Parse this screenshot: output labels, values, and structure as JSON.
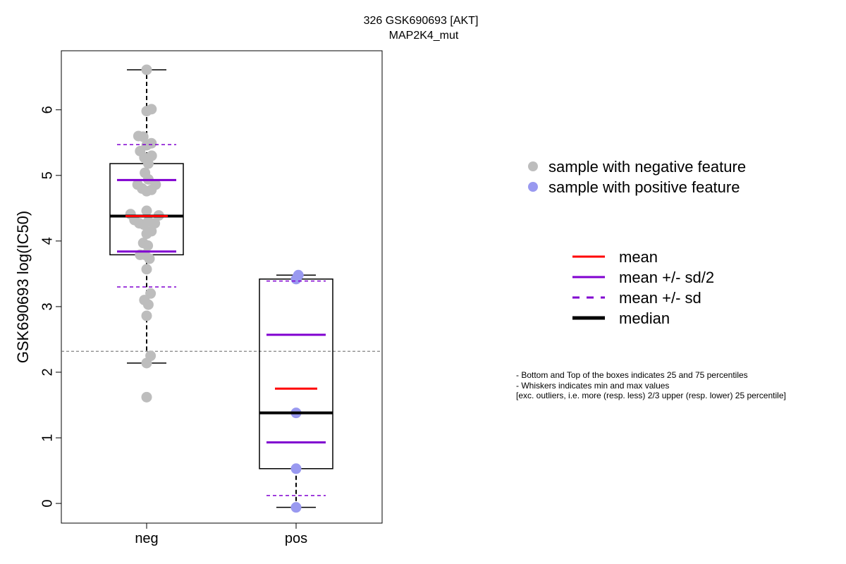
{
  "chart_data": {
    "type": "box",
    "title": "326 GSK690693 [AKT]",
    "subtitle": "MAP2K4_mut",
    "ylabel": "GSK690693 log(IC50)",
    "xlabel": "",
    "ylim": [
      -0.3,
      6.9
    ],
    "yticks": [
      0,
      1,
      2,
      3,
      4,
      5,
      6
    ],
    "categories": [
      "neg",
      "pos"
    ],
    "reference_line": 2.32,
    "groups": [
      {
        "name": "neg",
        "color": "#bdbdbd",
        "q1": 3.79,
        "median": 4.38,
        "q3": 5.18,
        "whisker_low": 2.14,
        "whisker_high": 6.61,
        "mean": 4.38,
        "mean_minus_half_sd": 3.84,
        "mean_plus_half_sd": 4.93,
        "mean_minus_sd": 3.3,
        "mean_plus_sd": 5.47,
        "points": [
          {
            "x": 0.0,
            "y": 6.61
          },
          {
            "x": 0.0,
            "y": 5.98
          },
          {
            "x": 0.17,
            "y": 6.01
          },
          {
            "x": -0.29,
            "y": 5.6
          },
          {
            "x": -0.12,
            "y": 5.59
          },
          {
            "x": 0.0,
            "y": 5.46
          },
          {
            "x": 0.17,
            "y": 5.49
          },
          {
            "x": -0.23,
            "y": 5.37
          },
          {
            "x": -0.08,
            "y": 5.27
          },
          {
            "x": 0.18,
            "y": 5.3
          },
          {
            "x": 0.06,
            "y": 5.18
          },
          {
            "x": -0.06,
            "y": 5.04
          },
          {
            "x": 0.06,
            "y": 4.94
          },
          {
            "x": -0.32,
            "y": 4.86
          },
          {
            "x": -0.16,
            "y": 4.8
          },
          {
            "x": 0.0,
            "y": 4.76
          },
          {
            "x": 0.17,
            "y": 4.78
          },
          {
            "x": 0.32,
            "y": 4.86
          },
          {
            "x": -0.57,
            "y": 4.41
          },
          {
            "x": 0.0,
            "y": 4.46
          },
          {
            "x": 0.43,
            "y": 4.39
          },
          {
            "x": -0.43,
            "y": 4.32
          },
          {
            "x": -0.26,
            "y": 4.27
          },
          {
            "x": -0.1,
            "y": 4.25
          },
          {
            "x": 0.06,
            "y": 4.3
          },
          {
            "x": 0.29,
            "y": 4.27
          },
          {
            "x": 0.0,
            "y": 4.11
          },
          {
            "x": 0.17,
            "y": 4.15
          },
          {
            "x": -0.12,
            "y": 3.97
          },
          {
            "x": 0.04,
            "y": 3.93
          },
          {
            "x": -0.23,
            "y": 3.79
          },
          {
            "x": -0.06,
            "y": 3.79
          },
          {
            "x": 0.1,
            "y": 3.73
          },
          {
            "x": 0.0,
            "y": 3.57
          },
          {
            "x": 0.14,
            "y": 3.2
          },
          {
            "x": -0.08,
            "y": 3.1
          },
          {
            "x": 0.06,
            "y": 3.03
          },
          {
            "x": 0.0,
            "y": 2.86
          },
          {
            "x": 0.14,
            "y": 2.25
          },
          {
            "x": 0.0,
            "y": 2.14
          },
          {
            "x": 0.0,
            "y": 1.62
          }
        ]
      },
      {
        "name": "pos",
        "color": "#9999f0",
        "q1": 0.53,
        "median": 1.38,
        "q3": 3.42,
        "whisker_low": -0.06,
        "whisker_high": 3.48,
        "mean": 1.75,
        "mean_minus_half_sd": 0.93,
        "mean_plus_half_sd": 2.57,
        "mean_minus_sd": 0.12,
        "mean_plus_sd": 3.39,
        "points": [
          {
            "x": 0.08,
            "y": 3.48
          },
          {
            "x": 0.0,
            "y": 3.42
          },
          {
            "x": 0.0,
            "y": 1.38
          },
          {
            "x": 0.0,
            "y": 0.53
          },
          {
            "x": 0.0,
            "y": -0.06
          }
        ]
      }
    ],
    "colors": {
      "mean": "#ff0000",
      "sd": "#8000d0",
      "median": "#000000",
      "reference": "#666666"
    }
  },
  "legend_points": [
    {
      "label": "sample with negative feature",
      "color": "#bdbdbd"
    },
    {
      "label": "sample with positive feature",
      "color": "#9999f0"
    }
  ],
  "legend_lines": [
    {
      "label": "mean",
      "style": "mean"
    },
    {
      "label": "mean +/- sd/2",
      "style": "half_sd"
    },
    {
      "label": "mean +/- sd",
      "style": "sd"
    },
    {
      "label": "median",
      "style": "median"
    }
  ],
  "notes": [
    "- Bottom and Top of the boxes indicates 25 and 75 percentiles",
    "- Whiskers indicates min and max values",
    "[exc. outliers, i.e. more (resp. less) 2/3 upper (resp. lower) 25 percentile]"
  ]
}
